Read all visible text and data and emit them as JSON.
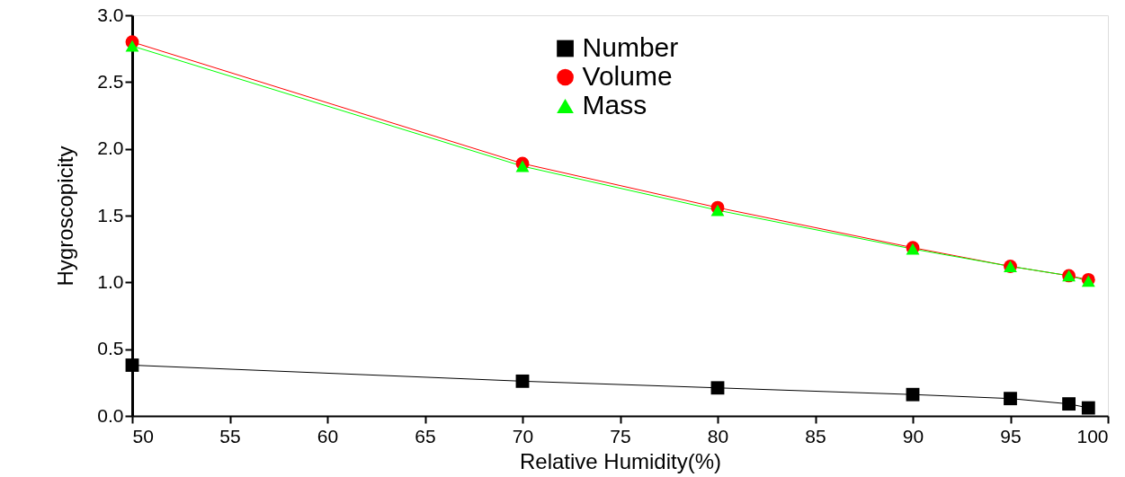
{
  "chart_data": {
    "type": "line",
    "xlabel": "Relative Humidity(%)",
    "ylabel": "Hygroscopicity",
    "x": [
      50,
      70,
      80,
      90,
      95,
      98,
      99
    ],
    "series": [
      {
        "name": "Number",
        "color": "#000000",
        "marker": "square",
        "values": [
          0.38,
          0.26,
          0.21,
          0.16,
          0.13,
          0.09,
          0.06
        ]
      },
      {
        "name": "Volume",
        "color": "#ff0000",
        "marker": "circle",
        "values": [
          2.8,
          1.89,
          1.56,
          1.26,
          1.12,
          1.05,
          1.02
        ]
      },
      {
        "name": "Mass",
        "color": "#00ff00",
        "marker": "triangle",
        "values": [
          2.77,
          1.87,
          1.54,
          1.25,
          1.12,
          1.05,
          1.01
        ]
      }
    ],
    "xlim": [
      50,
      100
    ],
    "xticks": [
      50,
      55,
      60,
      65,
      70,
      75,
      80,
      85,
      90,
      95,
      100
    ],
    "ylim": [
      0,
      3
    ],
    "yticks": [
      {
        "value": 0,
        "label": "0.0"
      },
      0.5,
      {
        "value": 1,
        "label": "1.0"
      },
      1.5,
      {
        "value": 2,
        "label": "2.0"
      },
      2.5,
      {
        "value": 3,
        "label": "3.0"
      }
    ],
    "grid": false,
    "legend": "top",
    "line_style": "solid"
  }
}
